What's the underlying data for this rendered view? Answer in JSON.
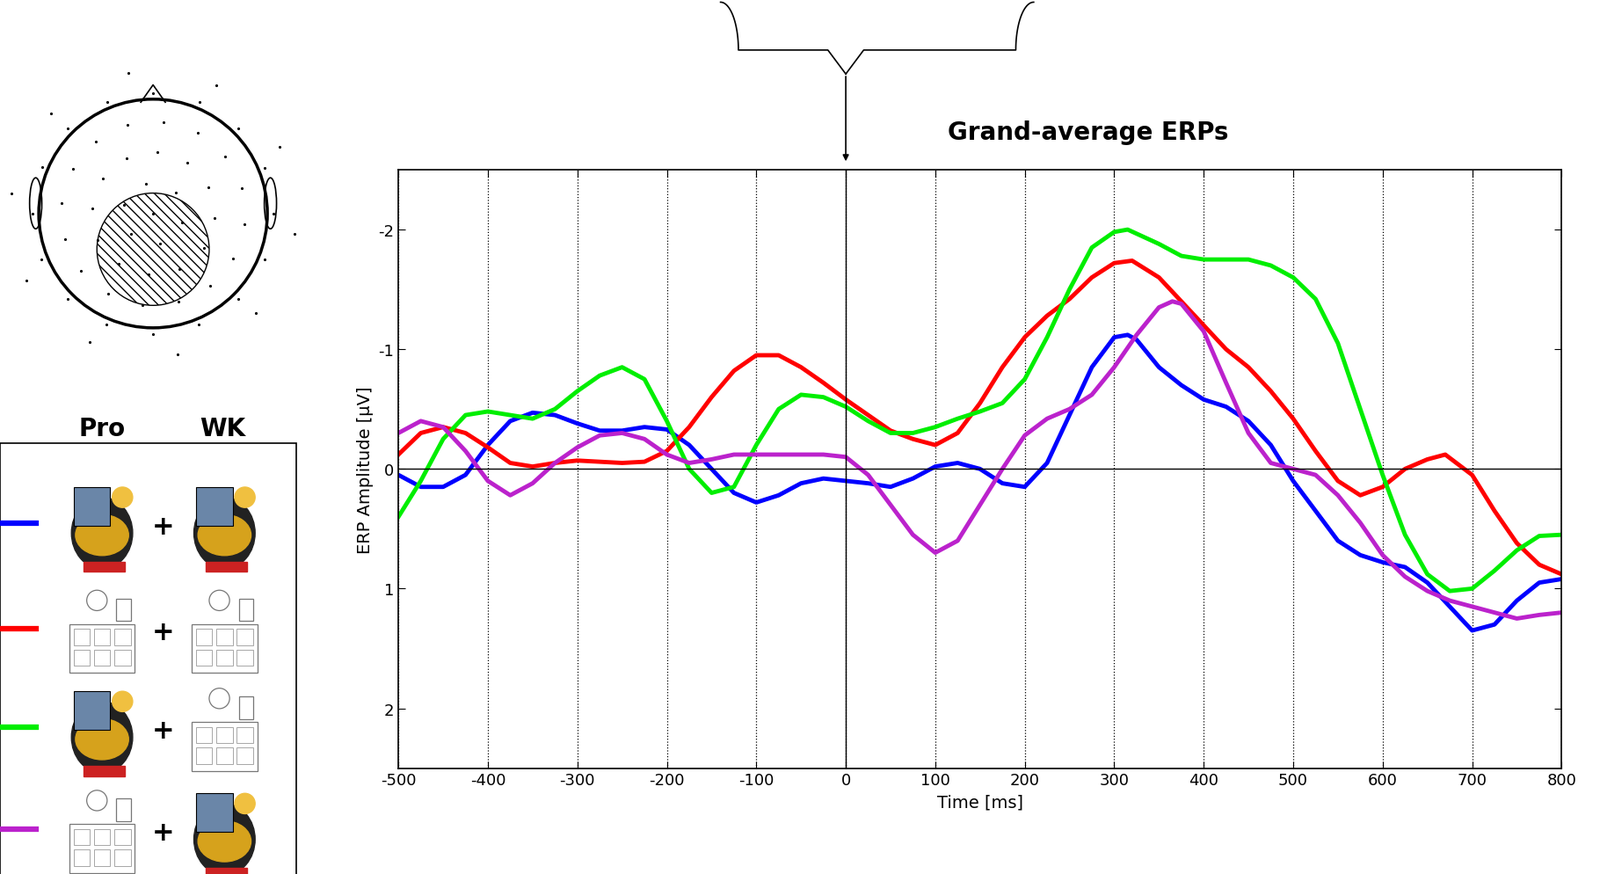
{
  "chart_data": {
    "type": "line",
    "title": "Grand-average ERPs",
    "x_label": "Time [ms]",
    "y_label": "ERP Amplitude [µV]",
    "xlim": [
      -500,
      800
    ],
    "ylim": [
      2.5,
      -2.5
    ],
    "xticks": [
      -500,
      -400,
      -300,
      -200,
      -100,
      0,
      100,
      200,
      300,
      400,
      500,
      600,
      700,
      800
    ],
    "yticks": [
      -2,
      -1,
      0,
      1,
      2
    ],
    "grid": "x",
    "legend_headers": [
      "Pro",
      "WK"
    ],
    "legend_separator": "+",
    "series": [
      {
        "color": "#0000ff",
        "x": [
          -500,
          -475,
          -450,
          -425,
          -400,
          -375,
          -350,
          -325,
          -300,
          -275,
          -250,
          -225,
          -200,
          -175,
          -150,
          -125,
          -100,
          -75,
          -50,
          -25,
          0,
          25,
          50,
          75,
          100,
          125,
          150,
          175,
          200,
          225,
          250,
          275,
          300,
          315,
          325,
          350,
          375,
          400,
          425,
          450,
          475,
          500,
          525,
          550,
          575,
          600,
          625,
          650,
          675,
          700,
          725,
          750,
          775,
          800
        ],
        "values": [
          0.05,
          0.15,
          0.15,
          0.05,
          -0.2,
          -0.4,
          -0.47,
          -0.45,
          -0.38,
          -0.32,
          -0.32,
          -0.35,
          -0.33,
          -0.2,
          0.0,
          0.2,
          0.28,
          0.22,
          0.12,
          0.08,
          0.1,
          0.12,
          0.15,
          0.08,
          -0.02,
          -0.05,
          0.0,
          0.12,
          0.15,
          -0.05,
          -0.45,
          -0.85,
          -1.1,
          -1.12,
          -1.08,
          -0.85,
          -0.7,
          -0.58,
          -0.52,
          -0.4,
          -0.2,
          0.1,
          0.35,
          0.6,
          0.72,
          0.78,
          0.82,
          0.95,
          1.15,
          1.35,
          1.3,
          1.1,
          0.95,
          0.92
        ]
      },
      {
        "color": "#ff0000",
        "x": [
          -500,
          -475,
          -450,
          -425,
          -400,
          -375,
          -350,
          -325,
          -300,
          -275,
          -250,
          -225,
          -200,
          -175,
          -150,
          -125,
          -100,
          -75,
          -50,
          -25,
          0,
          25,
          50,
          75,
          100,
          125,
          150,
          175,
          200,
          225,
          250,
          275,
          300,
          320,
          350,
          375,
          400,
          425,
          450,
          475,
          500,
          525,
          550,
          575,
          600,
          625,
          650,
          670,
          700,
          725,
          750,
          775,
          800
        ],
        "values": [
          -0.12,
          -0.3,
          -0.35,
          -0.3,
          -0.18,
          -0.05,
          -0.02,
          -0.05,
          -0.07,
          -0.06,
          -0.05,
          -0.06,
          -0.15,
          -0.35,
          -0.6,
          -0.82,
          -0.95,
          -0.95,
          -0.85,
          -0.72,
          -0.58,
          -0.45,
          -0.32,
          -0.25,
          -0.2,
          -0.3,
          -0.55,
          -0.85,
          -1.1,
          -1.28,
          -1.42,
          -1.6,
          -1.72,
          -1.74,
          -1.6,
          -1.4,
          -1.2,
          -1.0,
          -0.85,
          -0.65,
          -0.42,
          -0.15,
          0.1,
          0.22,
          0.15,
          0.0,
          -0.08,
          -0.12,
          0.05,
          0.35,
          0.62,
          0.8,
          0.88
        ]
      },
      {
        "color": "#00ee00",
        "x": [
          -500,
          -475,
          -450,
          -425,
          -400,
          -375,
          -350,
          -325,
          -300,
          -275,
          -250,
          -225,
          -200,
          -175,
          -150,
          -125,
          -100,
          -75,
          -50,
          -25,
          0,
          25,
          50,
          75,
          100,
          125,
          150,
          175,
          200,
          225,
          250,
          275,
          300,
          315,
          350,
          375,
          400,
          425,
          450,
          475,
          500,
          525,
          550,
          575,
          600,
          625,
          650,
          675,
          700,
          725,
          750,
          775,
          800
        ],
        "values": [
          0.4,
          0.1,
          -0.25,
          -0.45,
          -0.48,
          -0.45,
          -0.42,
          -0.5,
          -0.65,
          -0.78,
          -0.85,
          -0.75,
          -0.4,
          0.0,
          0.2,
          0.15,
          -0.2,
          -0.5,
          -0.62,
          -0.6,
          -0.52,
          -0.4,
          -0.3,
          -0.3,
          -0.35,
          -0.42,
          -0.48,
          -0.55,
          -0.75,
          -1.1,
          -1.5,
          -1.85,
          -1.98,
          -2.0,
          -1.88,
          -1.78,
          -1.75,
          -1.75,
          -1.75,
          -1.7,
          -1.6,
          -1.42,
          -1.05,
          -0.5,
          0.05,
          0.55,
          0.88,
          1.02,
          1.0,
          0.85,
          0.68,
          0.56,
          0.55
        ]
      },
      {
        "color": "#bb22cc",
        "x": [
          -500,
          -475,
          -450,
          -425,
          -400,
          -375,
          -350,
          -325,
          -300,
          -275,
          -250,
          -225,
          -200,
          -175,
          -150,
          -125,
          -100,
          -75,
          -50,
          -25,
          0,
          25,
          50,
          75,
          100,
          125,
          150,
          175,
          200,
          225,
          250,
          275,
          300,
          325,
          350,
          365,
          375,
          400,
          425,
          450,
          475,
          500,
          525,
          550,
          575,
          600,
          625,
          650,
          675,
          700,
          725,
          750,
          775,
          800
        ],
        "values": [
          -0.3,
          -0.4,
          -0.35,
          -0.15,
          0.1,
          0.22,
          0.12,
          -0.05,
          -0.18,
          -0.28,
          -0.3,
          -0.25,
          -0.12,
          -0.05,
          -0.08,
          -0.12,
          -0.12,
          -0.12,
          -0.12,
          -0.12,
          -0.1,
          0.05,
          0.3,
          0.55,
          0.7,
          0.6,
          0.3,
          0.0,
          -0.28,
          -0.42,
          -0.5,
          -0.62,
          -0.85,
          -1.12,
          -1.35,
          -1.4,
          -1.38,
          -1.15,
          -0.72,
          -0.3,
          -0.05,
          0.0,
          0.05,
          0.22,
          0.45,
          0.72,
          0.9,
          1.02,
          1.1,
          1.15,
          1.2,
          1.25,
          1.22,
          1.2
        ]
      }
    ]
  }
}
